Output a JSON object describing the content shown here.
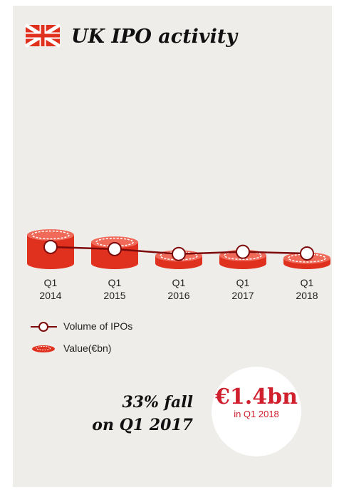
{
  "chart_data": {
    "type": "coin-line",
    "title": "UK IPO activity",
    "categories": [
      "Q1 2014",
      "Q1 2015",
      "Q1 2016",
      "Q1 2017",
      "Q1 2018"
    ],
    "series": [
      {
        "name": "Volume of IPOs",
        "kind": "line",
        "color": "#7d0a0a",
        "values": [
          41,
          37,
          28,
          32,
          29
        ]
      },
      {
        "name": "Value(€bn)",
        "kind": "coin",
        "color": "#e0301e",
        "values": [
          7.5,
          5.6,
          2.0,
          2.1,
          1.4
        ]
      }
    ],
    "callout": [
      "33% fall",
      "on Q1 2017"
    ],
    "highlight": {
      "label": "€1.4bn",
      "caption": "in Q1 2018"
    }
  }
}
